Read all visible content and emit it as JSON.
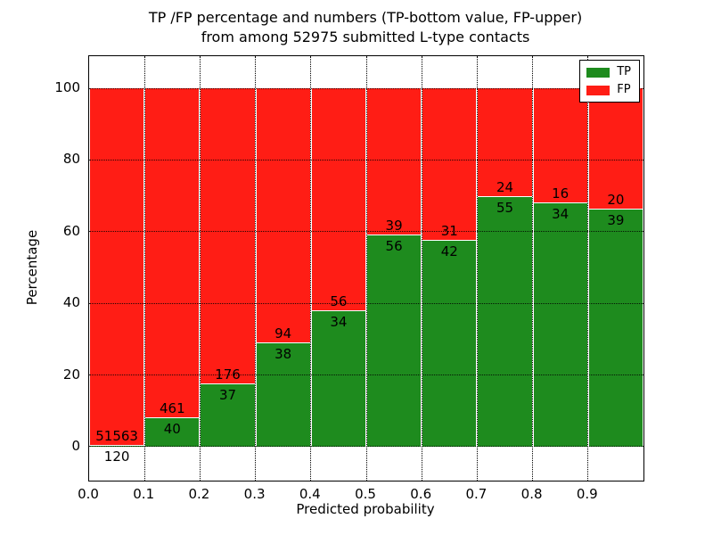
{
  "title": {
    "line1": "TP /FP percentage and numbers (TP-bottom value, FP-upper)",
    "line2": "from among 52975 submitted L-type contacts"
  },
  "chart_data": {
    "type": "bar",
    "stacked": true,
    "normalized": "each bar scaled to 100%",
    "title": "TP /FP percentage and numbers (TP-bottom value, FP-upper) from among 52975 submitted L-type contacts",
    "xlabel": "Predicted probability",
    "ylabel": "Percentage",
    "categories": [
      "0.0-0.1",
      "0.1-0.2",
      "0.2-0.3",
      "0.3-0.4",
      "0.4-0.5",
      "0.5-0.6",
      "0.6-0.7",
      "0.7-0.8",
      "0.8-0.9",
      "0.9-1.0"
    ],
    "series": [
      {
        "name": "TP",
        "color": "#1e8b1e",
        "counts": [
          120,
          40,
          37,
          38,
          34,
          56,
          42,
          55,
          34,
          39
        ]
      },
      {
        "name": "FP",
        "color": "#ff1d15",
        "counts": [
          51563,
          461,
          176,
          94,
          56,
          39,
          31,
          24,
          16,
          20
        ]
      }
    ],
    "bar_value_labels": "TP count below green/red boundary, FP count above it",
    "xticks": [
      "0.0",
      "0.1",
      "0.2",
      "0.3",
      "0.4",
      "0.5",
      "0.6",
      "0.7",
      "0.8",
      "0.9"
    ],
    "yticks": [
      0,
      20,
      40,
      60,
      80,
      100
    ],
    "xlim": [
      0.0,
      1.0
    ],
    "ylim": [
      -9.5,
      109
    ],
    "grid": "dotted black, horizontal and vertical",
    "legend_position": "upper right",
    "colors": {
      "background": "#ffffff",
      "frame": "#000000",
      "grid": "#000000",
      "segment_divider": "#ffffff"
    }
  },
  "legend": {
    "items": [
      {
        "label": "TP",
        "color": "#1e8b1e"
      },
      {
        "label": "FP",
        "color": "#ff1d15"
      }
    ]
  }
}
